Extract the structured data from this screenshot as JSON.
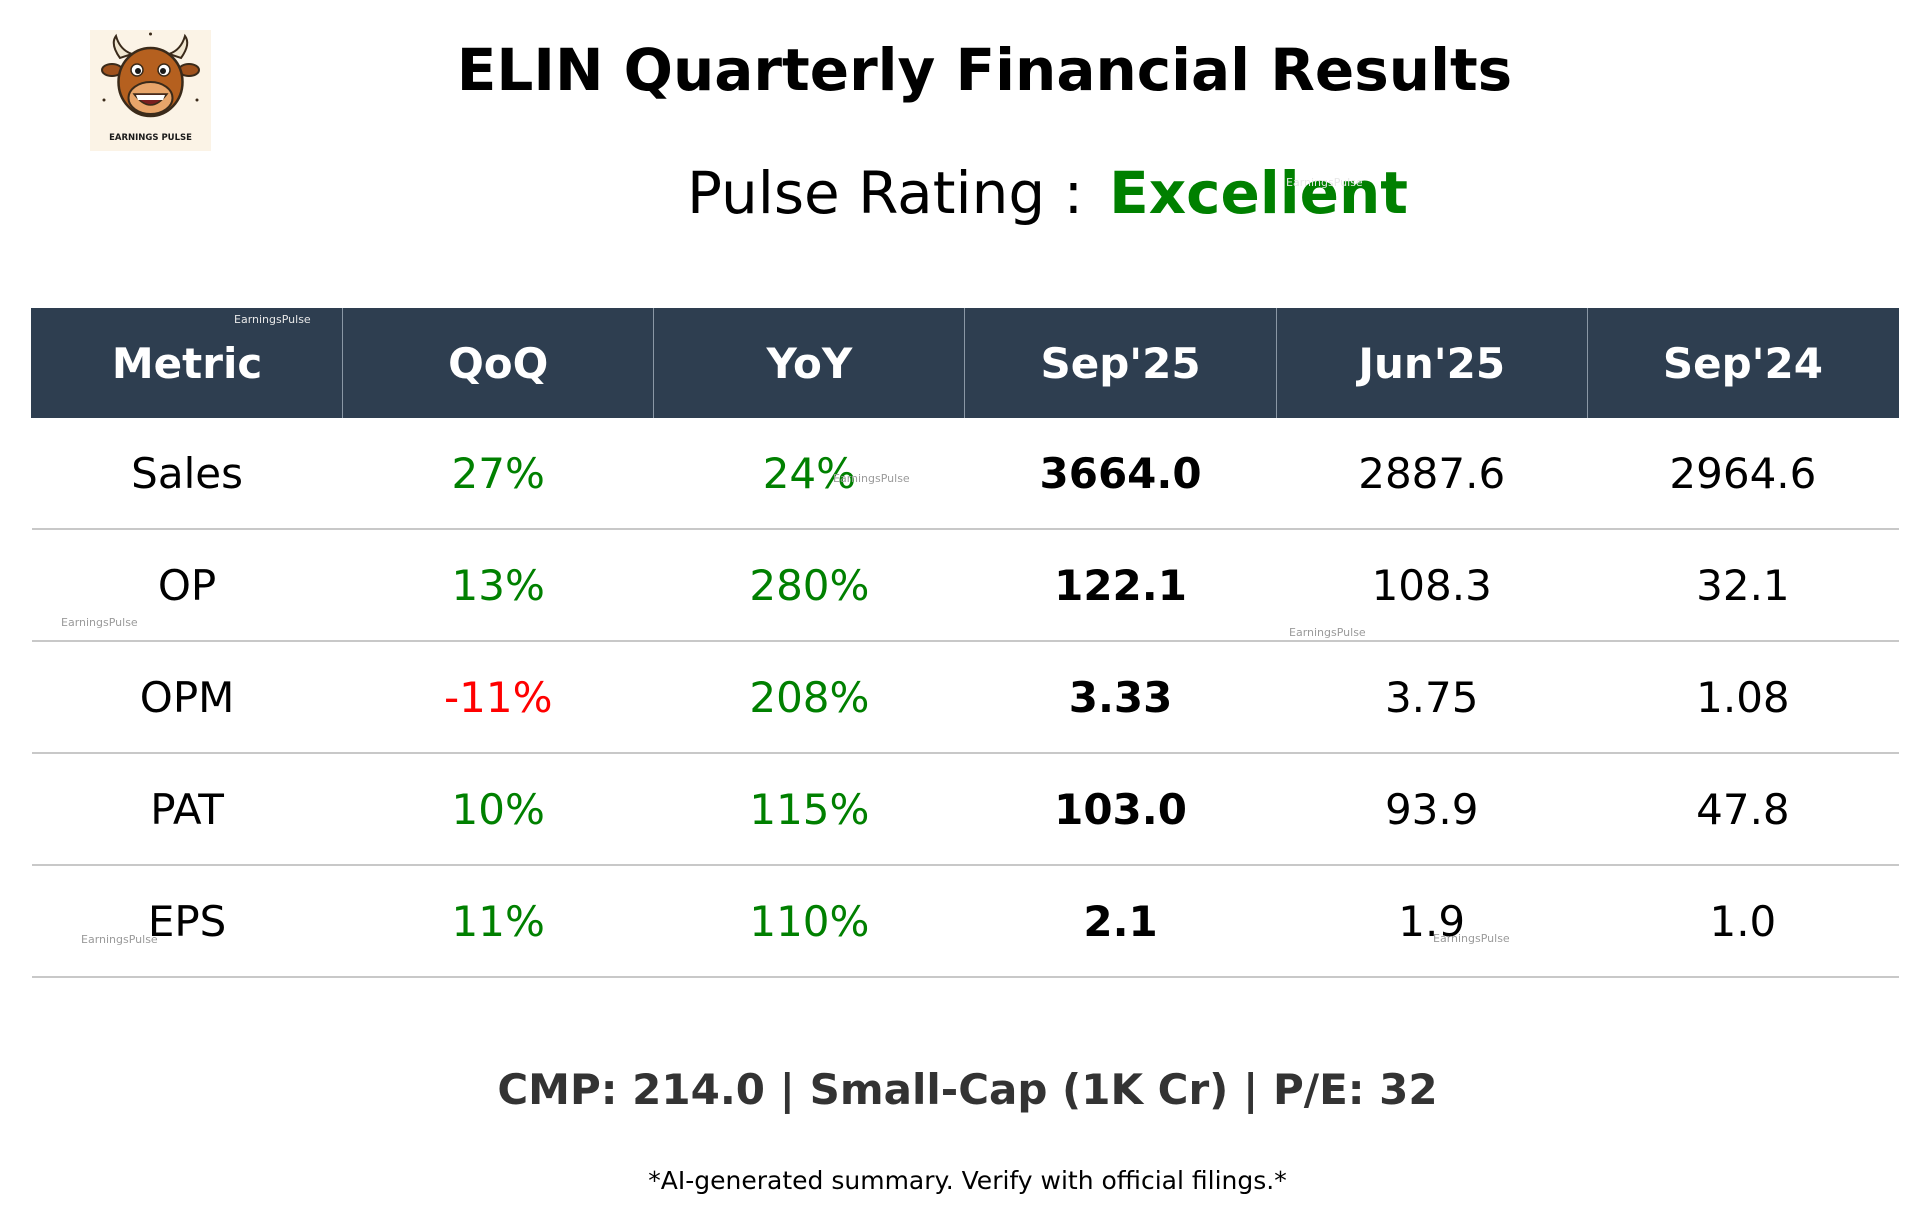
{
  "header": {
    "logo_text": "EARNINGS PULSE",
    "title": "ELIN Quarterly Financial Results",
    "rating_label": "Pulse Rating :",
    "rating_value": "Excellent"
  },
  "table": {
    "columns": [
      "Metric",
      "QoQ",
      "YoY",
      "Sep'25",
      "Jun'25",
      "Sep'24"
    ],
    "rows": [
      {
        "metric": "Sales",
        "qoq": "27%",
        "yoy": "24%",
        "sep25": "3664.0",
        "jun25": "2887.6",
        "sep24": "2964.6"
      },
      {
        "metric": "OP",
        "qoq": "13%",
        "yoy": "280%",
        "sep25": "122.1",
        "jun25": "108.3",
        "sep24": "32.1"
      },
      {
        "metric": "OPM",
        "qoq": "-11%",
        "yoy": "208%",
        "sep25": "3.33",
        "jun25": "3.75",
        "sep24": "1.08"
      },
      {
        "metric": "PAT",
        "qoq": "10%",
        "yoy": "115%",
        "sep25": "103.0",
        "jun25": "93.9",
        "sep24": "47.8"
      },
      {
        "metric": "EPS",
        "qoq": "11%",
        "yoy": "110%",
        "sep25": "2.1",
        "jun25": "1.9",
        "sep24": "1.0"
      }
    ]
  },
  "footer": {
    "info": "CMP: 214.0 | Small-Cap (1K Cr) | P/E: 32",
    "disclaimer": "*AI-generated summary. Verify with official filings.*"
  },
  "watermark": "EarningsPulse",
  "colors": {
    "header_bg": "#2e3e50",
    "positive": "#008000",
    "negative": "#ff0000",
    "footer_text": "#333333"
  }
}
